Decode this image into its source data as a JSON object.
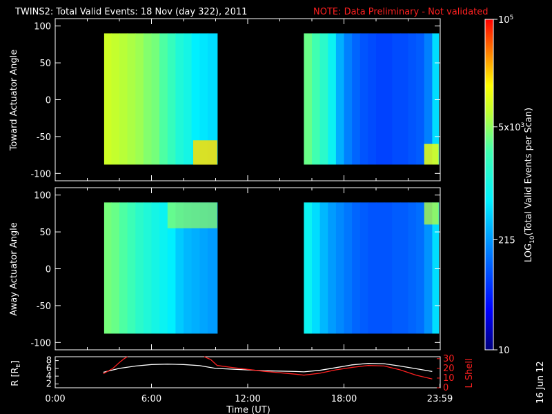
{
  "title": "TWINS2: Total Valid Events: 18 Nov (day 322), 2011",
  "note": "NOTE: Data Preliminary - Not validated",
  "date_stamp": "16 Jun 12",
  "colors": {
    "background": "#000000",
    "text": "#ffffff",
    "note": "#ff2020",
    "r_line": "#ffffff",
    "l_shell_line": "#ff2020"
  },
  "colorbar": {
    "label_prefix": "LOG",
    "label_subscript": "10",
    "label_suffix": "(Total Valid Events per Scan)",
    "colormap": "rainbow (blue-cyan-yellow-red)",
    "scale": "log",
    "range": [
      10,
      100000
    ],
    "ticks": [
      {
        "label": "10",
        "value": 10
      },
      {
        "label": "215",
        "value": 215
      },
      {
        "label": "5x10",
        "sup": "3",
        "value": 5000
      },
      {
        "label": "10",
        "sup": "5",
        "value": 100000
      }
    ]
  },
  "chart_data": [
    {
      "type": "heatmap",
      "title": "",
      "ylabel": "Toward Actuator Angle",
      "xlabel": "",
      "xlim_hours": [
        0,
        24
      ],
      "ylim": [
        -110,
        110
      ],
      "y_ticks": [
        "100",
        "50",
        "0",
        "-50",
        "-100"
      ],
      "x_tick_labels_shown": false,
      "data_y_range": [
        -88,
        90
      ],
      "blocks": [
        {
          "t_start": 3.05,
          "t_end": 10.1,
          "column_times": [
            3.05,
            3.5,
            4.0,
            4.5,
            5.0,
            5.5,
            6.0,
            6.5,
            7.0,
            7.5,
            8.0,
            8.5,
            9.0,
            9.5,
            10.1
          ],
          "log_counts": [
            3.95,
            3.9,
            3.85,
            3.8,
            3.75,
            3.65,
            3.6,
            3.45,
            3.3,
            3.1,
            3.0,
            2.8,
            2.75,
            2.7,
            2.8
          ],
          "low_angle_enhancement": {
            "t_start": 8.6,
            "t_end": 10.1,
            "angle_max": -55,
            "log_counts": 4.3
          }
        },
        {
          "t_start": 15.5,
          "t_end": 23.9,
          "column_times": [
            15.5,
            16.0,
            16.5,
            17.0,
            17.5,
            18.0,
            18.5,
            19.0,
            19.5,
            20.0,
            20.5,
            21.0,
            21.5,
            22.0,
            22.5,
            23.0,
            23.5,
            23.9
          ],
          "log_counts": [
            3.55,
            3.4,
            3.2,
            2.9,
            2.45,
            2.2,
            2.05,
            1.95,
            1.9,
            1.85,
            1.85,
            1.9,
            1.9,
            1.95,
            2.0,
            2.2,
            2.7,
            3.0
          ],
          "low_angle_enhancement": {
            "t_start": 23.0,
            "t_end": 23.9,
            "angle_max": -60,
            "log_counts": 4.1
          }
        }
      ]
    },
    {
      "type": "heatmap",
      "title": "",
      "ylabel": "Away Actuator Angle",
      "xlabel": "",
      "xlim_hours": [
        0,
        24
      ],
      "ylim": [
        -110,
        110
      ],
      "y_ticks": [
        "100",
        "50",
        "0",
        "-50",
        "-100"
      ],
      "x_tick_labels_shown": false,
      "data_y_range": [
        -88,
        90
      ],
      "blocks": [
        {
          "t_start": 3.05,
          "t_end": 10.1,
          "column_times": [
            3.05,
            3.5,
            4.0,
            4.5,
            5.0,
            5.5,
            6.0,
            6.5,
            7.0,
            7.5,
            8.0,
            8.5,
            9.0,
            9.5,
            10.1
          ],
          "log_counts": [
            3.6,
            3.55,
            3.45,
            3.35,
            3.2,
            3.1,
            3.0,
            2.9,
            2.8,
            2.6,
            2.5,
            2.45,
            2.4,
            2.35,
            2.3
          ],
          "high_angle_enhancement": {
            "t_start": 7.0,
            "t_end": 10.1,
            "angle_min": 55,
            "log_counts": 3.7
          }
        },
        {
          "t_start": 15.5,
          "t_end": 23.9,
          "column_times": [
            15.5,
            16.0,
            16.5,
            17.0,
            17.5,
            18.0,
            18.5,
            19.0,
            19.5,
            20.0,
            20.5,
            21.0,
            21.5,
            22.0,
            22.5,
            23.0,
            23.5,
            23.9
          ],
          "log_counts": [
            2.9,
            2.7,
            2.5,
            2.35,
            2.25,
            2.15,
            2.05,
            2.0,
            1.95,
            1.95,
            1.95,
            2.0,
            2.0,
            2.05,
            2.1,
            2.3,
            2.7,
            3.1
          ],
          "high_angle_enhancement": {
            "t_start": 23.0,
            "t_end": 23.9,
            "angle_min": 60,
            "log_counts": 3.9
          }
        }
      ]
    },
    {
      "type": "line",
      "title": "",
      "xlabel": "Time (UT)",
      "xlim_hours": [
        0,
        24
      ],
      "x_tick_labels": [
        "0:00",
        "6:00",
        "12:00",
        "18:00",
        "23:59"
      ],
      "x_tick_hours": [
        0,
        6,
        12,
        18,
        23.98
      ],
      "ylabel_left": "R [R",
      "ylabel_left_sub": "E",
      "ylabel_left_close": "]",
      "ylim_left": [
        1,
        9
      ],
      "y_ticks_left": [
        "2",
        "4",
        "6",
        "8"
      ],
      "ylabel_right": "L Shell",
      "ylim_right": [
        0,
        32
      ],
      "y_ticks_right": [
        "0",
        "10",
        "20",
        "30"
      ],
      "series": [
        {
          "name": "",
          "axis": "left",
          "color": "#ffffff",
          "x": [
            3.0,
            4.0,
            5.0,
            6.0,
            7.0,
            8.0,
            9.0,
            10.0,
            11.0,
            12.0,
            13.0,
            14.0,
            15.0,
            15.5,
            16.5,
            17.5,
            18.5,
            19.5,
            20.5,
            21.5,
            22.5,
            23.5
          ],
          "y": [
            5.0,
            6.0,
            6.6,
            7.0,
            7.1,
            7.0,
            6.7,
            6.0,
            5.8,
            5.6,
            5.4,
            5.3,
            5.2,
            5.1,
            5.5,
            6.2,
            6.9,
            7.3,
            7.2,
            6.6,
            5.9,
            5.2
          ]
        },
        {
          "name": "",
          "axis": "right",
          "color": "#ff2020",
          "segments": [
            {
              "x": [
                3.0,
                3.6,
                4.0,
                4.3,
                4.5
              ],
              "y": [
                14.5,
                20,
                26,
                30,
                34
              ]
            },
            {
              "x": [
                9.3,
                9.7,
                10.1,
                11,
                12,
                13,
                14,
                15,
                15.5,
                16.5,
                17.5,
                18.5,
                19.5,
                20.5,
                21.5,
                22.5,
                23.5
              ],
              "y": [
                34,
                29,
                23,
                21,
                19,
                17,
                15.5,
                14,
                13,
                15,
                18.5,
                21,
                23,
                22.5,
                18.5,
                13,
                9
              ]
            }
          ]
        }
      ]
    }
  ]
}
